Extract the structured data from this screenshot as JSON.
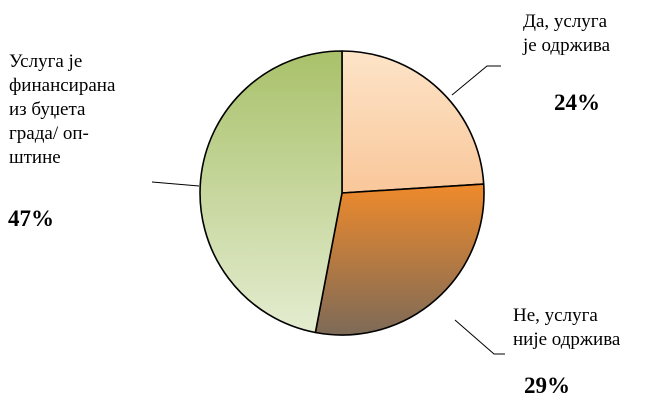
{
  "chart_data": {
    "type": "pie",
    "slices": [
      {
        "label_lines": [
          "Да, услуга",
          "је одржива"
        ],
        "value": 24,
        "value_label": "24%",
        "color": "#fbd3a8",
        "gradient": [
          "#fde4c8",
          "#f9c79a"
        ]
      },
      {
        "label_lines": [
          "Не, услуга",
          "није одржива"
        ],
        "value": 29,
        "value_label": "29%",
        "color": "#e07b2a",
        "gradient": [
          "#ef8a2b",
          "#7d6a58"
        ]
      },
      {
        "label_lines": [
          "Услуга је",
          "финансирана",
          "из буџета",
          "града/ оп-",
          "штине"
        ],
        "value": 47,
        "value_label": "47%",
        "color": "#c8d9a8",
        "gradient": [
          "#e4ecd0",
          "#a9c16a"
        ]
      }
    ],
    "start_angle_deg": 0,
    "direction": "clockwise",
    "title": "",
    "legend": "none"
  }
}
